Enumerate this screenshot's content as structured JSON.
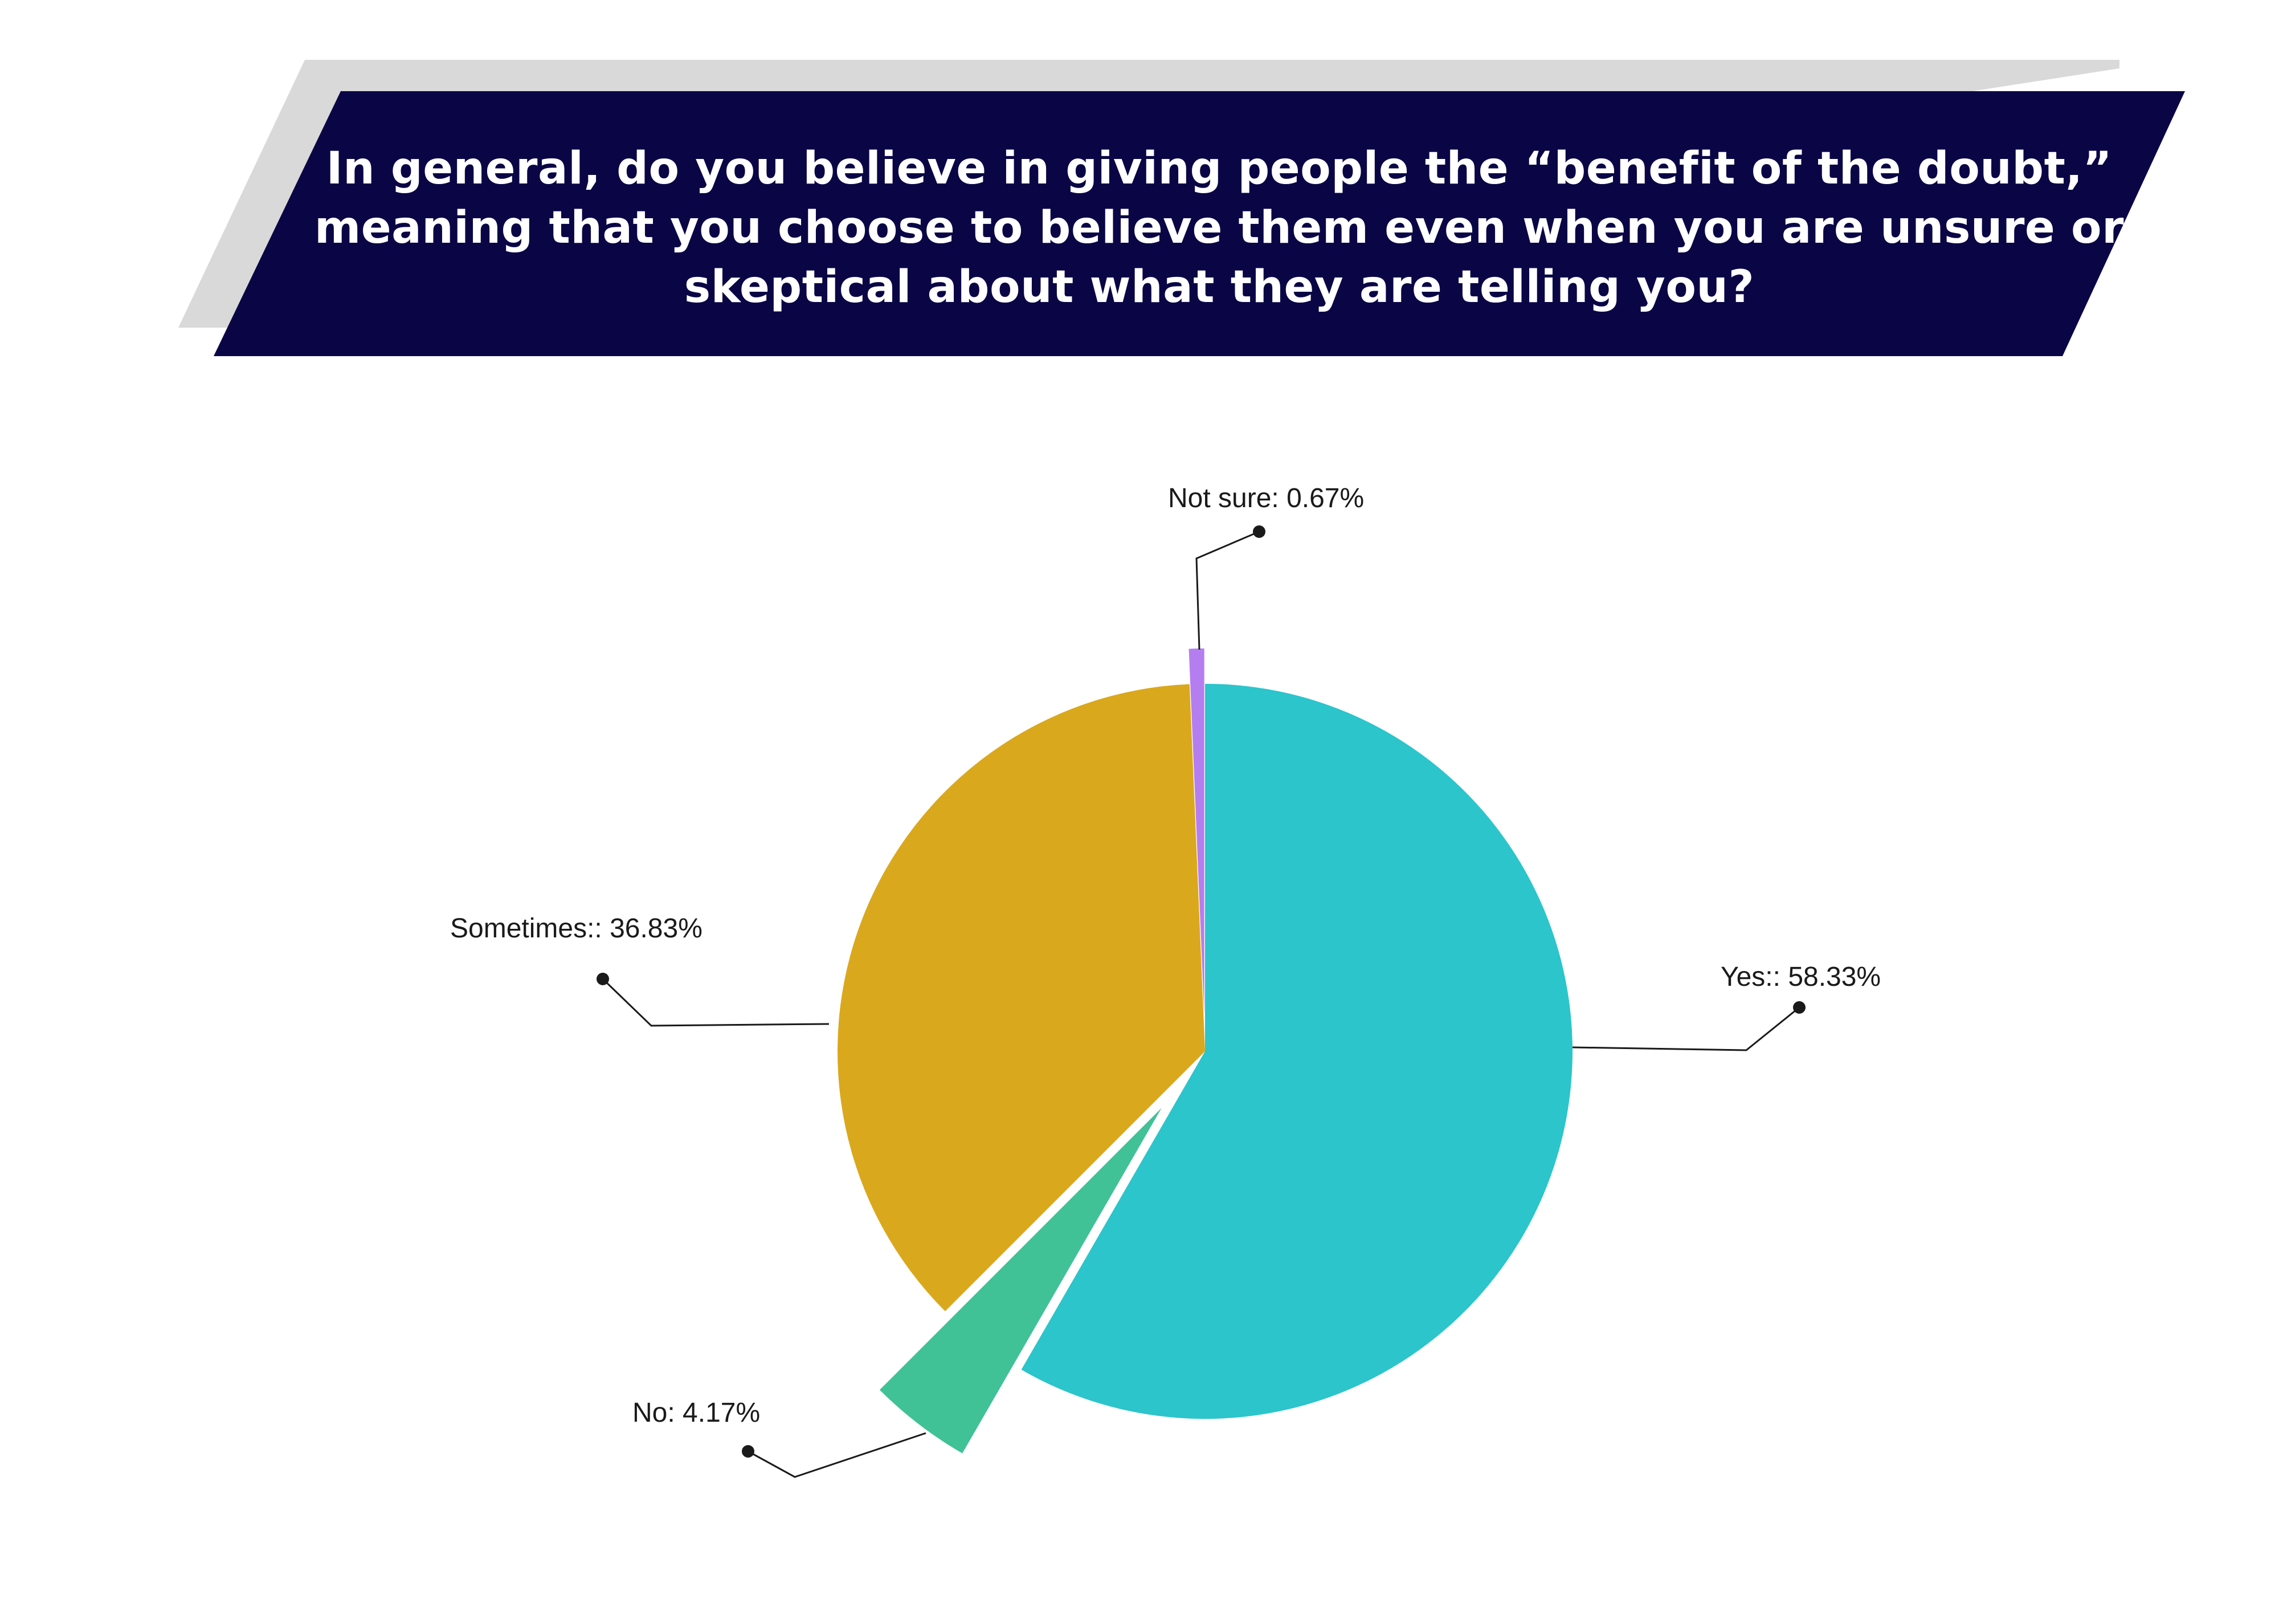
{
  "title": "In general, do you believe in giving people the “benefit of the doubt,” meaning that you choose to believe them even when you are unsure or skeptical about what they are telling you?",
  "colors": {
    "banner": "#0a0646",
    "banner_shadow": "#d9d9d9",
    "leader": "#1a1a1a"
  },
  "chart_data": {
    "type": "pie",
    "title": "In general, do you believe in giving people the “benefit of the doubt,” meaning that you choose to believe them even when you are unsure or skeptical about what they are telling you?",
    "slices": [
      {
        "name": "Yes:",
        "value": 58.33,
        "label": "Yes:: 58.33%",
        "color": "#2bc5cb",
        "exploded": false
      },
      {
        "name": "No",
        "value": 4.17,
        "label": "No: 4.17%",
        "color": "#41c196",
        "exploded": true
      },
      {
        "name": "Sometimes:",
        "value": 36.83,
        "label": "Sometimes:: 36.83%",
        "color": "#daa81c",
        "exploded": false
      },
      {
        "name": "Not sure",
        "value": 0.67,
        "label": "Not sure: 0.67%",
        "color": "#b57ef0",
        "exploded": true
      }
    ],
    "start_angle": "12 o'clock",
    "direction": "clockwise",
    "legend": "none"
  }
}
